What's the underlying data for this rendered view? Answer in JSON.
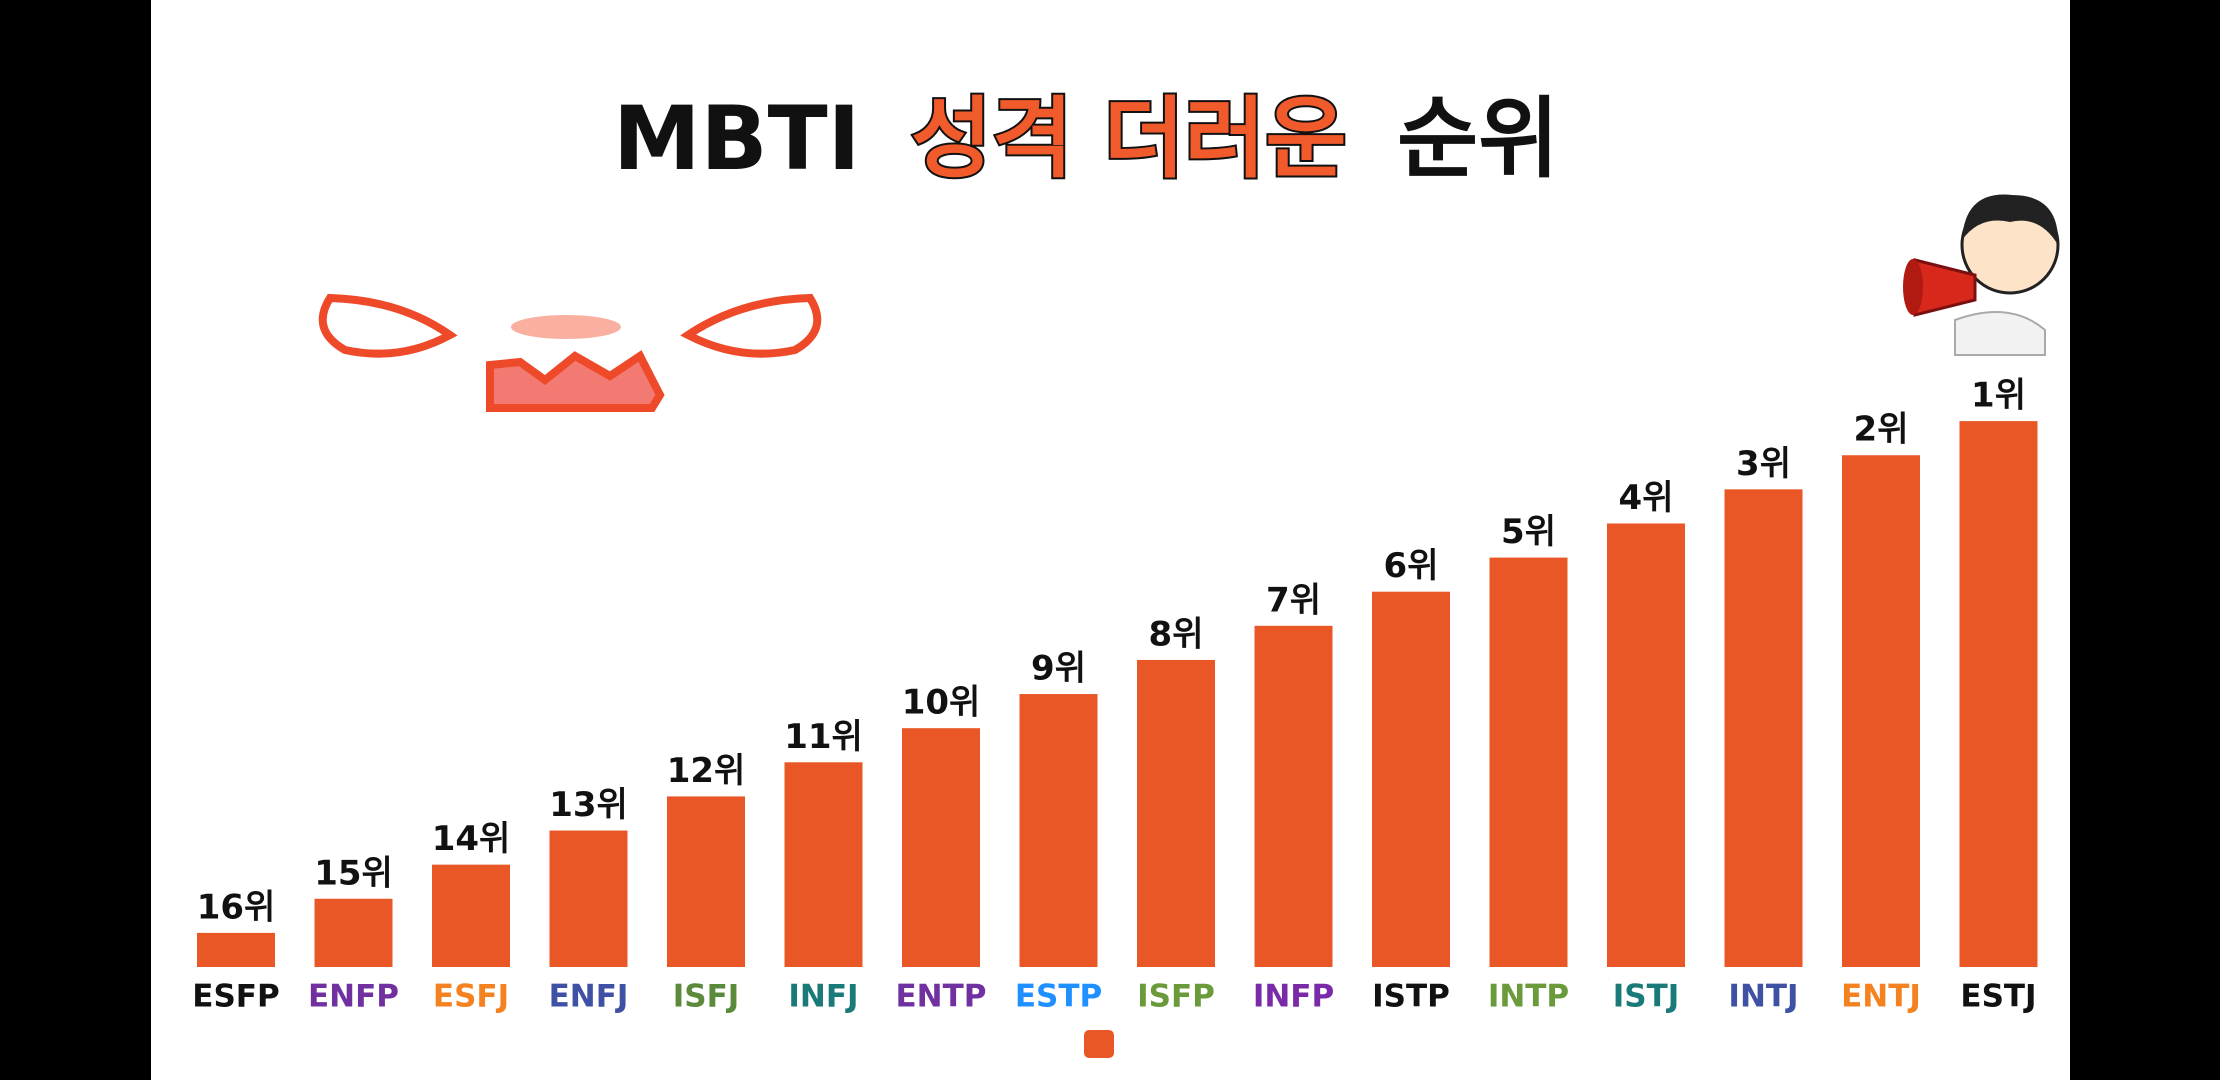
{
  "chart_data": {
    "type": "bar",
    "title": [
      "MBTI",
      "성격 더러운",
      "순위"
    ],
    "categories": [
      "ESFP",
      "ENFP",
      "ESFJ",
      "ENFJ",
      "ISFJ",
      "INFJ",
      "ENTP",
      "ESTP",
      "ISFP",
      "INFP",
      "ISTP",
      "INTP",
      "ISTJ",
      "INTJ",
      "ENTJ",
      "ESTJ"
    ],
    "category_colors": [
      "#111111",
      "#7030a0",
      "#f58220",
      "#3f51a5",
      "#5a8a3a",
      "#1a7a7a",
      "#7030a0",
      "#1e90ff",
      "#6a9a3a",
      "#7a2aa8",
      "#111111",
      "#6a9a3a",
      "#1a7a7a",
      "#3f51a5",
      "#f58220",
      "#111111"
    ],
    "values": [
      16,
      15,
      14,
      13,
      12,
      11,
      10,
      9,
      8,
      7,
      6,
      5,
      4,
      3,
      2,
      1
    ],
    "value_labels": [
      "16위",
      "15위",
      "14위",
      "13위",
      "12위",
      "11위",
      "10위",
      "9위",
      "8위",
      "7위",
      "6위",
      "5위",
      "4위",
      "3위",
      "2위",
      "1위"
    ],
    "color": "#e85725",
    "ylim": [
      17,
      0
    ]
  }
}
